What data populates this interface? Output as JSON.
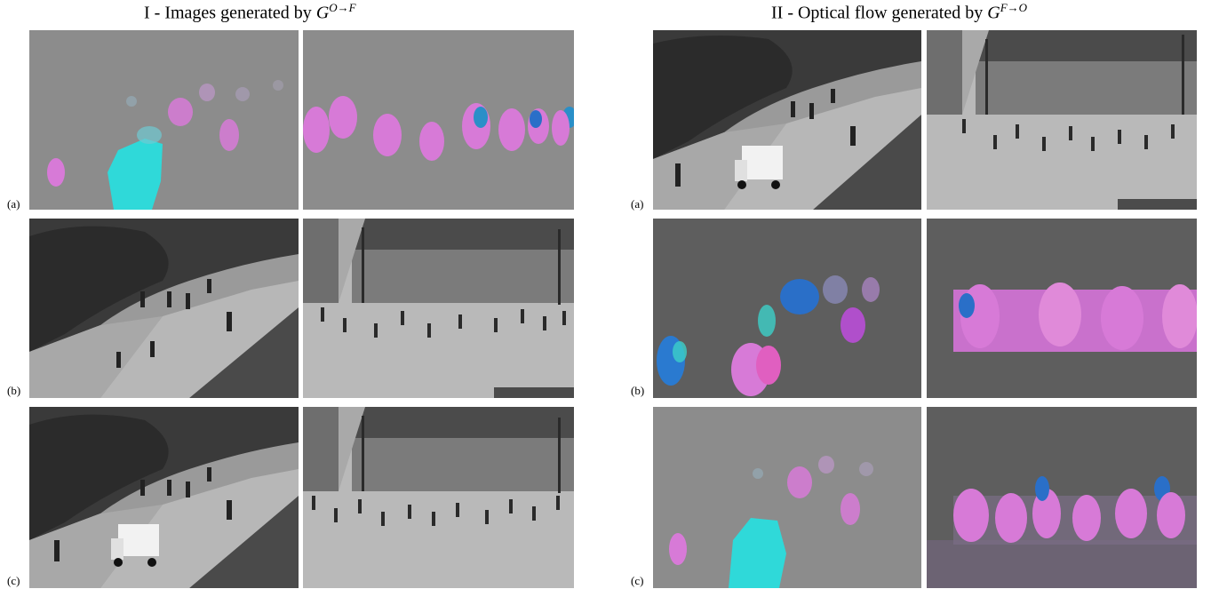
{
  "figure": {
    "left_title": {
      "text": "I - Images generated by ",
      "symbol": "G",
      "superscript": "O→F"
    },
    "right_title": {
      "text": "II - Optical flow generated by ",
      "symbol": "G",
      "superscript": "F→O"
    },
    "left_rows": [
      {
        "label": "(a)",
        "content": [
          "optical-flow",
          "optical-flow"
        ]
      },
      {
        "label": "(b)",
        "content": [
          "grayscale-image",
          "grayscale-image"
        ]
      },
      {
        "label": "(c)",
        "content": [
          "grayscale-image",
          "grayscale-image"
        ]
      }
    ],
    "right_rows": [
      {
        "label": "(a)",
        "content": [
          "grayscale-image",
          "grayscale-image"
        ]
      },
      {
        "label": "(b)",
        "content": [
          "optical-flow",
          "optical-flow"
        ]
      },
      {
        "label": "(c)",
        "content": [
          "optical-flow",
          "optical-flow"
        ]
      }
    ]
  },
  "colors": {
    "flow_background": "#8c8c8c",
    "flow_dark": "#5e5e5e",
    "cyan": "#2fd9d9",
    "magenta": "#d77ad7",
    "blue": "#2a6fc8"
  }
}
